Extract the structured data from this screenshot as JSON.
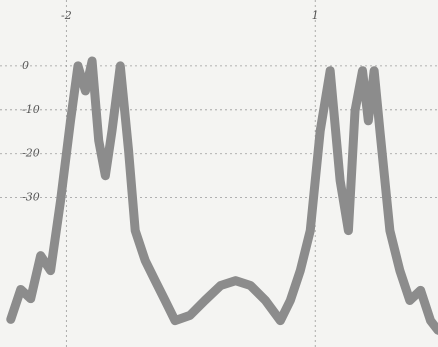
{
  "chart_data": {
    "type": "line",
    "x": [
      -2.67,
      -2.55,
      -2.43,
      -2.31,
      -2.19,
      -2.07,
      -1.95,
      -1.86,
      -1.77,
      -1.69,
      -1.61,
      -1.53,
      -1.45,
      -1.35,
      -1.25,
      -1.17,
      -1.05,
      -0.93,
      -0.81,
      -0.69,
      -0.51,
      -0.33,
      -0.14,
      0.04,
      0.22,
      0.4,
      0.58,
      0.7,
      0.82,
      0.94,
      1.06,
      1.18,
      1.3,
      1.4,
      1.48,
      1.57,
      1.64,
      1.71,
      1.78,
      1.9,
      2.02,
      2.14,
      2.27,
      2.39,
      2.48
    ],
    "series": [
      {
        "color": "#8c8c8c",
        "values": [
          -57.7,
          -50.9,
          -53.0,
          -43.2,
          -46.6,
          -30.7,
          -12.5,
          0,
          -5.7,
          1.1,
          -17.0,
          -25.0,
          -14.8,
          0,
          -19.3,
          -37.5,
          -44.3,
          -48.9,
          -53.4,
          -58.0,
          -56.8,
          -53.4,
          -50.0,
          -48.9,
          -50.0,
          -53.4,
          -58.0,
          -53.4,
          -46.6,
          -37.5,
          -14.8,
          -1.1,
          -26.1,
          -37.5,
          -10.2,
          -1.1,
          -12.5,
          -1.1,
          -14.8,
          -37.5,
          -46.6,
          -53.4,
          -51.1,
          -58.0,
          -60.2
        ]
      }
    ],
    "xlim": [
      -2.8,
      2.48
    ],
    "ylim": [
      -64,
      15
    ],
    "xticks": [
      -2,
      1
    ],
    "yticks": [
      0,
      -10,
      -20,
      -30
    ],
    "grid": true
  }
}
